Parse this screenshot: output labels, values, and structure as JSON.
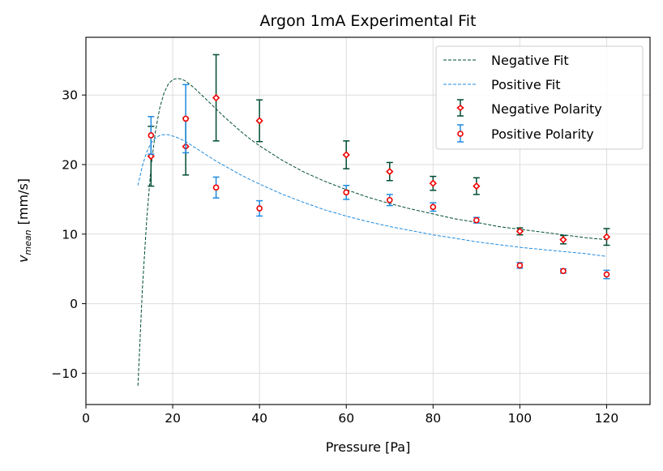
{
  "chart_data": {
    "type": "scatter",
    "title": "Argon 1mA Experimental Fit",
    "xlabel": "Pressure [Pa]",
    "ylabel_main": "v",
    "ylabel_sub": "mean",
    "ylabel_unit": "[mm/s]",
    "xlim": [
      0,
      130
    ],
    "ylim": [
      -14.5,
      38.3
    ],
    "xticks": [
      0,
      20,
      40,
      60,
      80,
      100,
      120
    ],
    "yticks": [
      -10,
      0,
      10,
      20,
      30
    ],
    "grid": true,
    "legend_position": "upper right",
    "colors": {
      "negative": "#004d33",
      "positive": "#1f8be0",
      "marker_edge": "#ee0000",
      "grid": "#dddddd"
    },
    "series": [
      {
        "name": "Negative Fit",
        "kind": "fit",
        "color_key": "negative",
        "x": [
          12,
          13,
          14,
          15,
          16,
          17,
          18,
          19,
          20,
          21,
          22,
          23,
          24,
          25,
          26,
          27,
          28,
          29,
          30,
          32,
          34,
          36,
          38,
          40,
          45,
          50,
          55,
          60,
          65,
          70,
          75,
          80,
          85,
          90,
          95,
          100,
          105,
          110,
          115,
          120
        ],
        "y": [
          -11.8,
          2.0,
          12.1,
          19.6,
          24.7,
          28.1,
          30.3,
          31.6,
          32.2,
          32.4,
          32.3,
          32.0,
          31.5,
          31.0,
          30.4,
          29.8,
          29.2,
          28.6,
          28.0,
          26.8,
          25.7,
          24.6,
          23.6,
          22.7,
          20.7,
          19.0,
          17.6,
          16.4,
          15.3,
          14.4,
          13.6,
          12.9,
          12.2,
          11.7,
          11.1,
          10.7,
          10.3,
          9.9,
          9.5,
          9.2
        ]
      },
      {
        "name": "Positive Fit",
        "kind": "fit",
        "color_key": "positive",
        "x": [
          12,
          13,
          14,
          15,
          16,
          17,
          18,
          19,
          20,
          21,
          22,
          23,
          24,
          25,
          26,
          28,
          30,
          32,
          34,
          36,
          38,
          40,
          45,
          50,
          55,
          60,
          65,
          70,
          75,
          80,
          85,
          90,
          95,
          100,
          105,
          110,
          115,
          120
        ],
        "y": [
          17.0,
          19.8,
          21.8,
          23.1,
          23.8,
          24.2,
          24.3,
          24.3,
          24.1,
          23.9,
          23.6,
          23.3,
          22.9,
          22.5,
          22.1,
          21.3,
          20.5,
          19.8,
          19.1,
          18.4,
          17.8,
          17.2,
          15.8,
          14.6,
          13.5,
          12.6,
          11.8,
          11.1,
          10.5,
          9.9,
          9.4,
          8.9,
          8.5,
          8.1,
          7.8,
          7.5,
          7.2,
          6.8
        ]
      },
      {
        "name": "Negative Polarity",
        "kind": "points",
        "color_key": "negative",
        "x": [
          15,
          23,
          30,
          40,
          60,
          70,
          80,
          90,
          100,
          110,
          120
        ],
        "y": [
          21.2,
          22.6,
          29.6,
          26.3,
          21.4,
          19.0,
          17.3,
          16.9,
          10.4,
          9.2,
          9.6
        ],
        "err": [
          4.3,
          4.1,
          6.2,
          3.0,
          2.0,
          1.3,
          1.0,
          1.2,
          0.5,
          0.6,
          1.2
        ]
      },
      {
        "name": "Positive Polarity",
        "kind": "points",
        "color_key": "positive",
        "x": [
          15,
          23,
          30,
          40,
          60,
          70,
          80,
          90,
          100,
          110,
          120
        ],
        "y": [
          24.2,
          26.6,
          16.7,
          13.7,
          16.0,
          14.9,
          13.9,
          12.0,
          5.5,
          4.7,
          4.2
        ],
        "err": [
          2.7,
          4.9,
          1.5,
          1.1,
          1.0,
          0.8,
          0.6,
          0.4,
          0.4,
          0.3,
          0.6
        ]
      }
    ]
  }
}
